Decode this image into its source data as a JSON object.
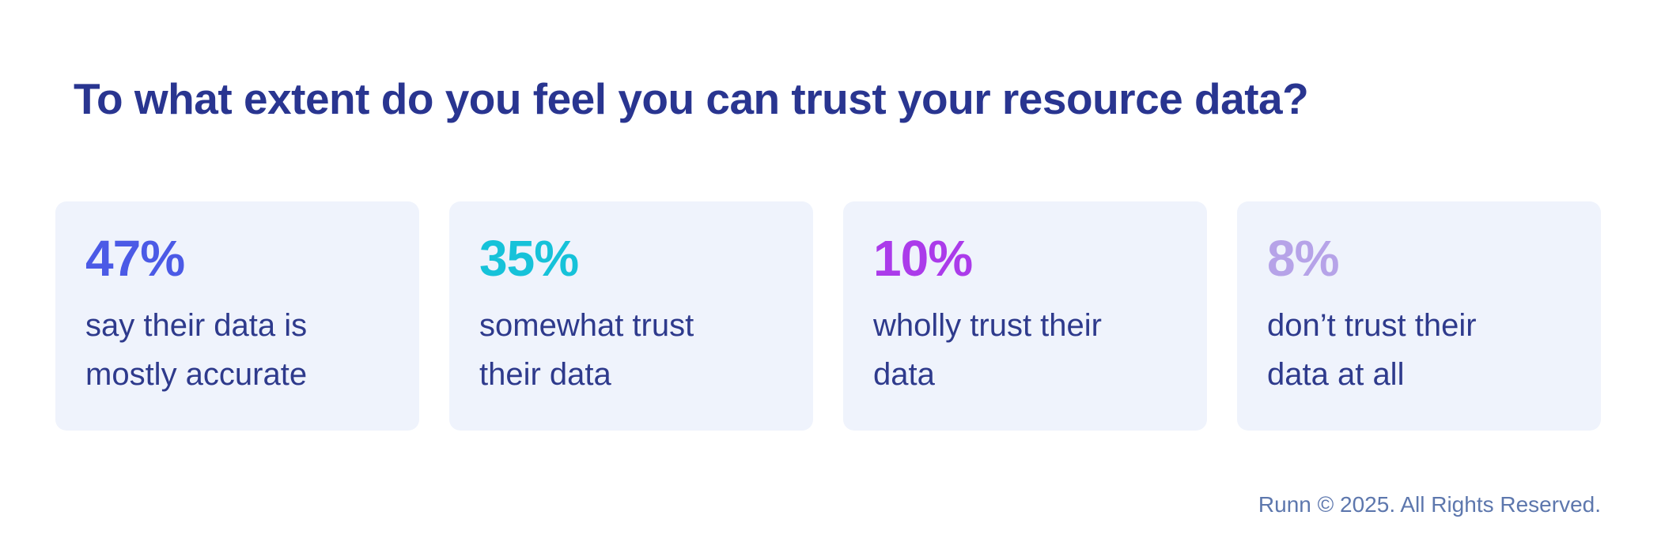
{
  "title": "To what extent do you feel you can trust your resource data?",
  "cards": [
    {
      "value": "47%",
      "color": "#4B5AE6",
      "label_lines": [
        "say their data is",
        "mostly accurate"
      ],
      "label": "say their data is mostly accurate"
    },
    {
      "value": "35%",
      "color": "#16C2D9",
      "label_lines": [
        "somewhat trust",
        "their data"
      ],
      "label": "somewhat trust their data"
    },
    {
      "value": "10%",
      "color": "#AB3BEA",
      "label_lines": [
        "wholly trust their",
        "data"
      ],
      "label": "wholly trust their data"
    },
    {
      "value": "8%",
      "color": "#B6A3E8",
      "label_lines": [
        "don’t trust their",
        "data at all"
      ],
      "label": "don’t trust their data at all"
    }
  ],
  "footer": {
    "text": "Runn © 2025. All Rights Reserved."
  },
  "colors": {
    "background": "#FFFFFF",
    "card_background": "#EFF3FC",
    "title_text": "#293590",
    "label_text": "#2E3A8C",
    "footer_text": "#5D77AD",
    "stat_1": "#4B5AE6",
    "stat_2": "#16C2D9",
    "stat_3": "#AB3BEA",
    "stat_4": "#B6A3E8"
  },
  "chart_data": {
    "type": "table",
    "title": "To what extent do you feel you can trust your resource data?",
    "categories": [
      "say their data is mostly accurate",
      "somewhat trust their data",
      "wholly trust their data",
      "don’t trust their data at all"
    ],
    "values": [
      47,
      35,
      10,
      8
    ],
    "unit": "%",
    "layout": "horizontal-stat-cards",
    "legend": "none",
    "grid": false
  }
}
